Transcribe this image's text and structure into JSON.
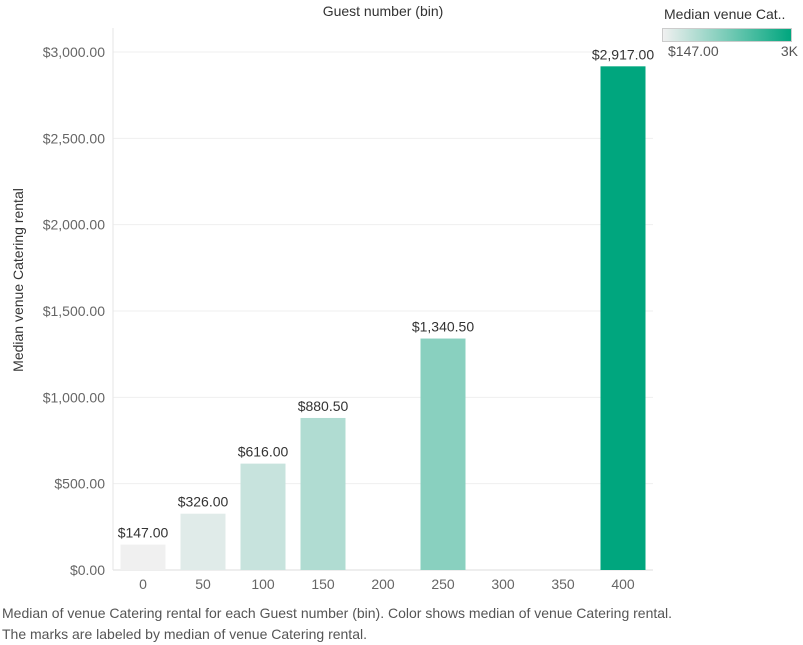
{
  "chart_data": {
    "type": "bar",
    "title": "Guest number (bin)",
    "xlabel": "Guest number (bin)",
    "ylabel": "Median venue Catering rental",
    "categories": [
      "0",
      "50",
      "100",
      "150",
      "200",
      "250",
      "300",
      "350",
      "400"
    ],
    "values": [
      147,
      326,
      616,
      880.5,
      null,
      1340.5,
      null,
      null,
      2917
    ],
    "data_labels": [
      "$147.00",
      "$326.00",
      "$616.00",
      "$880.50",
      "",
      "$1,340.50",
      "",
      "",
      "$2,917.00"
    ],
    "ylim": [
      0,
      3000
    ],
    "yticks": [
      0,
      500,
      1000,
      1500,
      2000,
      2500,
      3000
    ],
    "ytick_labels": [
      "$0.00",
      "$500.00",
      "$1,000.00",
      "$1,500.00",
      "$2,000.00",
      "$2,500.00",
      "$3,000.00"
    ],
    "grid": true,
    "color_scale": {
      "min_color": "#f0f0f0",
      "max_color": "#00a67e",
      "min": 147,
      "max": 2917
    }
  },
  "legend": {
    "title": "Median venue Cat..",
    "min_label": "$147.00",
    "max_label": "3K"
  },
  "caption": "Median of venue Catering rental for each Guest number (bin).  Color shows median of venue Catering rental.  The marks are labeled by median of venue Catering rental."
}
